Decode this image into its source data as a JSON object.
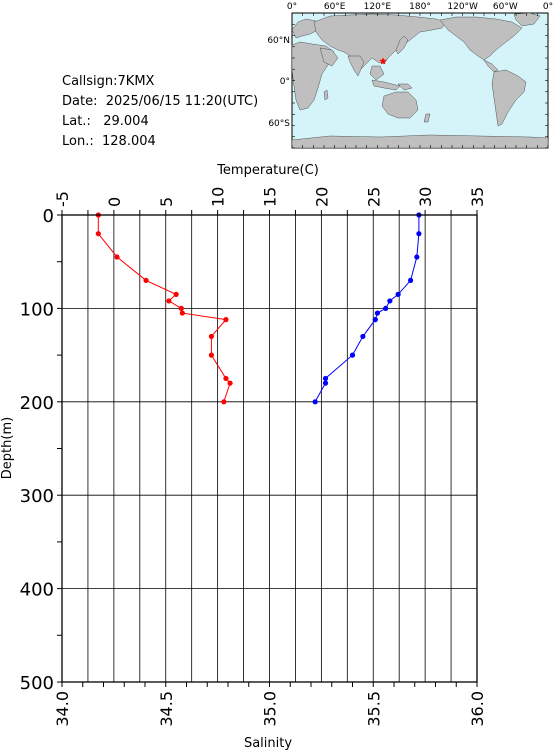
{
  "station": {
    "callsign_label": "Callsign:",
    "callsign": "7KMX",
    "date_label": "Date:",
    "date": "2025/06/15 11:20(UTC)",
    "lat_label": "Lat.:",
    "lat": "29.004",
    "lon_label": "Lon.:",
    "lon": "128.004"
  },
  "map": {
    "lon_ticks": [
      "0°",
      "60°E",
      "120°E",
      "180°",
      "120°W",
      "60°W",
      "0°"
    ],
    "lat_ticks": [
      "60°N",
      "0°",
      "60°S"
    ],
    "ocean_color": "#d4f4fa",
    "land_color": "#bfbfbf",
    "marker": {
      "lon": 128.004,
      "lat": 29.004,
      "color": "#ff0000"
    }
  },
  "chart_data": {
    "type": "line",
    "ylabel": "Depth(m)",
    "ylim": [
      0,
      500
    ],
    "y_inverted": true,
    "yticks": [
      0,
      100,
      200,
      300,
      400,
      500
    ],
    "top_axis": {
      "label": "Temperature(C)",
      "range": [
        -5,
        35
      ],
      "ticks": [
        -5,
        0,
        5,
        10,
        15,
        20,
        25,
        30,
        35
      ]
    },
    "bottom_axis": {
      "label": "Salinity",
      "range": [
        34.0,
        36.0
      ],
      "ticks": [
        "34.0",
        "34.5",
        "35.0",
        "35.5",
        "36.0"
      ]
    },
    "grid": true,
    "series": [
      {
        "axis": "top",
        "color": "#ff0000",
        "depth": [
          0,
          20,
          45,
          70,
          85,
          92,
          100,
          105,
          112,
          130,
          150,
          175,
          180,
          200
        ],
        "values": [
          -1.5,
          -1.5,
          0.3,
          3.1,
          6.0,
          5.3,
          6.5,
          6.6,
          10.8,
          9.4,
          9.4,
          10.8,
          11.2,
          10.6
        ]
      },
      {
        "axis": "bottom",
        "color": "#0000ff",
        "depth": [
          0,
          20,
          45,
          70,
          85,
          92,
          100,
          105,
          112,
          130,
          150,
          175,
          180,
          200
        ],
        "values": [
          35.72,
          35.72,
          35.71,
          35.68,
          35.62,
          35.58,
          35.56,
          35.52,
          35.51,
          35.45,
          35.4,
          35.27,
          35.27,
          35.22
        ]
      }
    ]
  }
}
